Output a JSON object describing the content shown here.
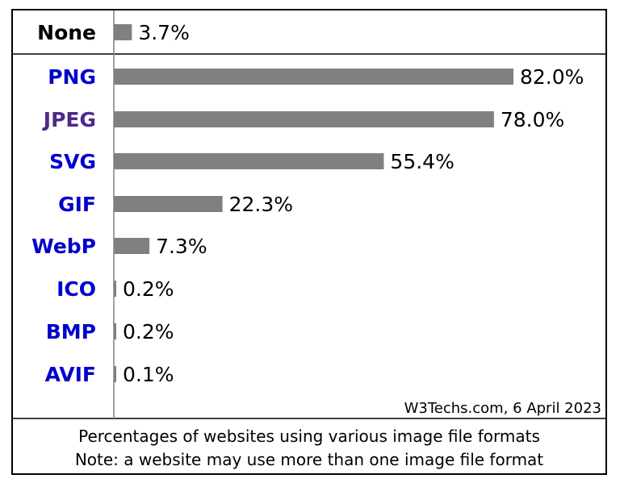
{
  "chart_data": {
    "type": "bar",
    "orientation": "horizontal",
    "categories": [
      "None",
      "PNG",
      "JPEG",
      "SVG",
      "GIF",
      "WebP",
      "ICO",
      "BMP",
      "AVIF"
    ],
    "values": [
      3.7,
      82.0,
      78.0,
      55.4,
      22.3,
      7.3,
      0.2,
      0.2,
      0.1
    ],
    "value_labels": [
      "3.7%",
      "82.0%",
      "78.0%",
      "55.4%",
      "22.3%",
      "7.3%",
      "0.2%",
      "0.2%",
      "0.1%"
    ],
    "category_colors": [
      "#000000",
      "#0000cc",
      "#4b2a8a",
      "#0000cc",
      "#0000cc",
      "#0000cc",
      "#0000cc",
      "#0000cc",
      "#0000cc"
    ],
    "bar_color": "#808080",
    "xlim": [
      0,
      100
    ],
    "credit": "W3Techs.com, 6 April 2023",
    "caption_lines": [
      "Percentages of websites using various image file formats",
      "Note: a website may use more than one image file format"
    ],
    "grid": false
  }
}
